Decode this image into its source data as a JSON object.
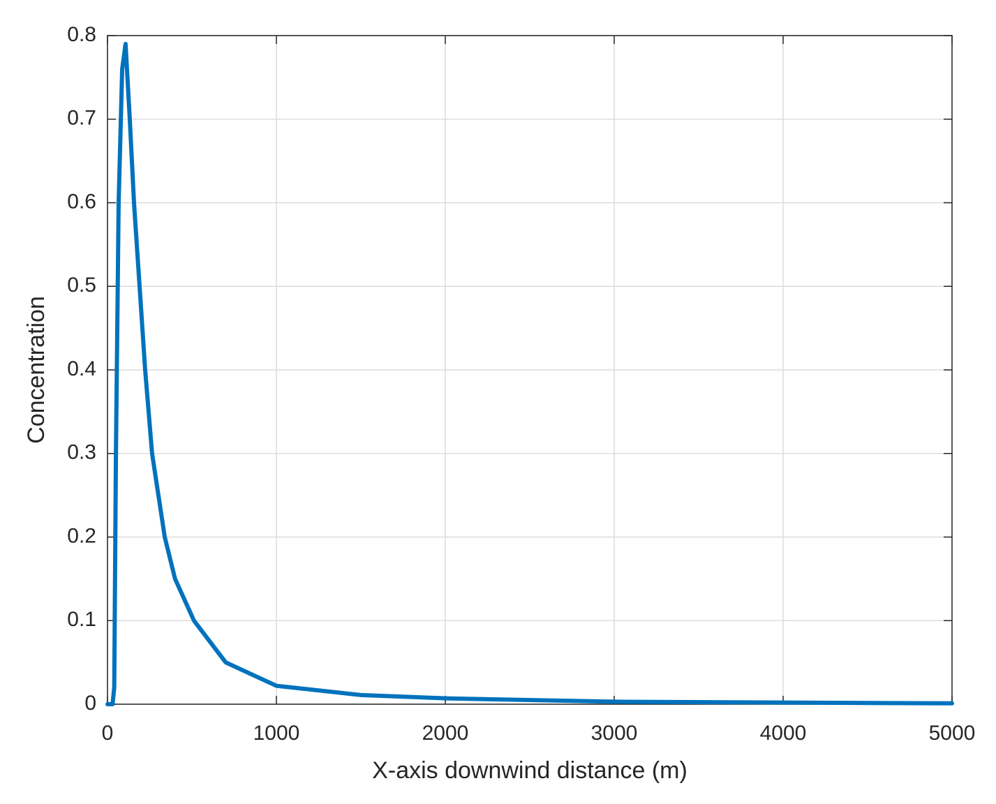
{
  "chart_data": {
    "type": "line",
    "x_label": "X-axis downwind distance (m)",
    "y_label": "Concentration",
    "series": [
      {
        "color": "#0072bd",
        "x": [
          0,
          30,
          40,
          50,
          66,
          87,
          107,
          132,
          157,
          190,
          223,
          264,
          339,
          400,
          512,
          700,
          1000,
          1500,
          2000,
          3000,
          4000,
          5000
        ],
        "values": [
          0,
          0,
          0.02,
          0.3,
          0.6,
          0.76,
          0.79,
          0.7,
          0.6,
          0.5,
          0.4,
          0.3,
          0.2,
          0.15,
          0.1,
          0.05,
          0.022,
          0.011,
          0.007,
          0.003,
          0.002,
          0.001
        ]
      }
    ],
    "xlim": [
      0,
      5000
    ],
    "xticks": [
      0,
      1000,
      2000,
      3000,
      4000,
      5000
    ],
    "ylim": [
      0,
      0.8
    ],
    "yticks": [
      0,
      0.1,
      0.2,
      0.3,
      0.4,
      0.5,
      0.6,
      0.7,
      0.8
    ],
    "grid": true
  }
}
